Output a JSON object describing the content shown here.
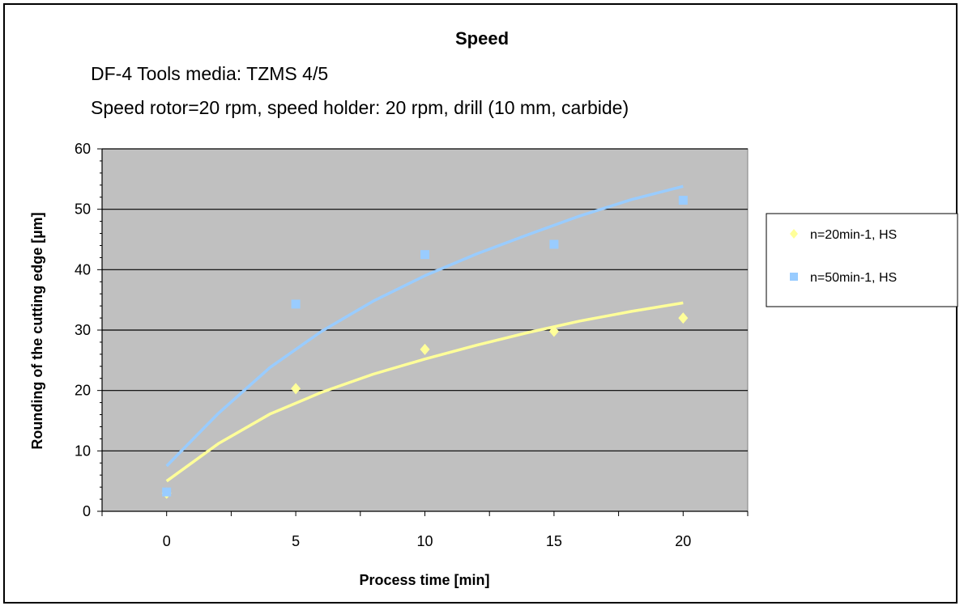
{
  "chart_data": {
    "type": "scatter",
    "title": "Speed",
    "subtitle_lines": [
      "DF-4 Tools  media: TZMS 4/5",
      "Speed rotor=20 rpm, speed holder: 20 rpm, drill (10 mm, carbide)"
    ],
    "xlabel": "Process time [min]",
    "ylabel": "Rounding of the cutting edge [µm]",
    "xlim": [
      -2.5,
      22.5
    ],
    "ylim": [
      0,
      60
    ],
    "x_ticks": [
      0,
      5,
      10,
      15,
      20
    ],
    "y_ticks": [
      0,
      10,
      20,
      30,
      40,
      50,
      60
    ],
    "grid": "horizontal",
    "legend_position": "right",
    "plot_background": "#c0c0c0",
    "series": [
      {
        "name": "n=20min-1, HS",
        "marker": "diamond",
        "color": "#ffff99",
        "trend_color": "#ffff99",
        "x": [
          0,
          5,
          10,
          15,
          20
        ],
        "y": [
          3,
          20.3,
          26.8,
          29.8,
          32
        ],
        "trendline": {
          "type": "power",
          "x": [
            0,
            2,
            4,
            6,
            8,
            10,
            12,
            14,
            16,
            18,
            20
          ],
          "y": [
            5,
            11.2,
            16.1,
            19.7,
            22.7,
            25.2,
            27.5,
            29.6,
            31.5,
            33.1,
            34.5
          ]
        }
      },
      {
        "name": "n=50min-1, HS",
        "marker": "square",
        "color": "#99ccff",
        "trend_color": "#99ccff",
        "x": [
          0,
          5,
          10,
          15,
          20
        ],
        "y": [
          3.2,
          34.3,
          42.5,
          44.2,
          51.5
        ],
        "trendline": {
          "type": "power",
          "x": [
            0,
            2,
            4,
            6,
            8,
            10,
            12,
            14,
            16,
            18,
            20
          ],
          "y": [
            7.5,
            16.2,
            23.8,
            29.8,
            34.8,
            39,
            42.6,
            45.8,
            48.9,
            51.6,
            53.8
          ]
        }
      }
    ]
  }
}
